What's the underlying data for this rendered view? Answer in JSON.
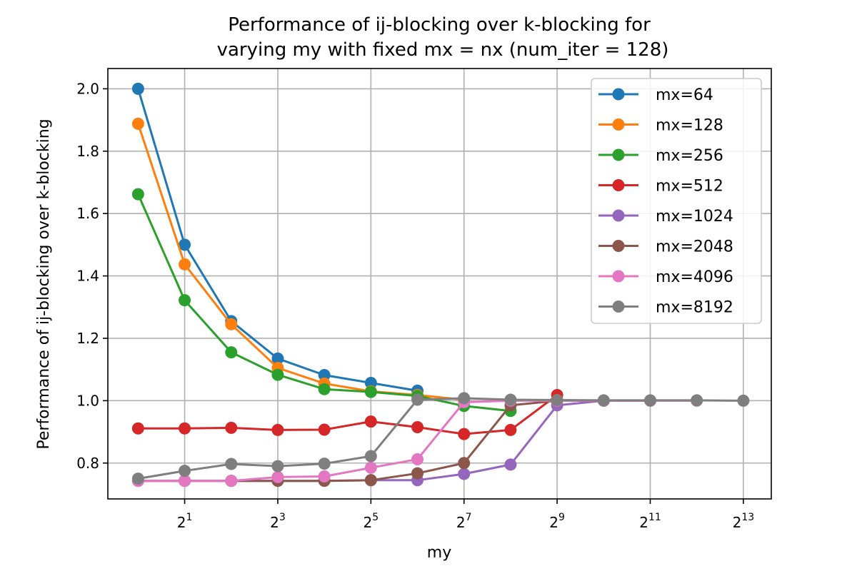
{
  "chart_data": {
    "type": "line",
    "title_lines": [
      "Performance of ij-blocking over k-blocking for",
      "varying my with fixed mx = nx (num_iter = 128)"
    ],
    "xlabel": "my",
    "ylabel": "Performance of ij-blocking over k-blocking",
    "x_scale": "log2",
    "xlim_exp": [
      -0.65,
      13.6
    ],
    "ylim": [
      0.685,
      2.065
    ],
    "x_ticks": [
      {
        "base": "2",
        "exp": "1",
        "value": 1
      },
      {
        "base": "2",
        "exp": "3",
        "value": 3
      },
      {
        "base": "2",
        "exp": "5",
        "value": 5
      },
      {
        "base": "2",
        "exp": "7",
        "value": 7
      },
      {
        "base": "2",
        "exp": "9",
        "value": 9
      },
      {
        "base": "2",
        "exp": "11",
        "value": 11
      },
      {
        "base": "2",
        "exp": "13",
        "value": 13
      }
    ],
    "y_ticks": [
      "0.8",
      "1.0",
      "1.2",
      "1.4",
      "1.6",
      "1.8",
      "2.0"
    ],
    "grid": true,
    "legend_position": "top-right",
    "series": [
      {
        "name": "mx=64",
        "color": "#1f77b4",
        "x_exp": [
          0,
          1,
          2,
          3,
          4,
          5,
          6
        ],
        "y": [
          2.0,
          1.5,
          1.255,
          1.135,
          1.082,
          1.057,
          1.032
        ]
      },
      {
        "name": "mx=128",
        "color": "#ff7f0e",
        "x_exp": [
          0,
          1,
          2,
          3,
          4,
          5,
          6,
          7
        ],
        "y": [
          1.888,
          1.437,
          1.245,
          1.105,
          1.055,
          1.03,
          1.018,
          1.003
        ]
      },
      {
        "name": "mx=256",
        "color": "#2ca02c",
        "x_exp": [
          0,
          1,
          2,
          3,
          4,
          5,
          6,
          7,
          8
        ],
        "y": [
          1.662,
          1.322,
          1.155,
          1.083,
          1.037,
          1.028,
          1.015,
          0.983,
          0.967
        ]
      },
      {
        "name": "mx=512",
        "color": "#d62728",
        "x_exp": [
          0,
          1,
          2,
          3,
          4,
          5,
          6,
          7,
          8,
          9
        ],
        "y": [
          0.911,
          0.911,
          0.913,
          0.906,
          0.907,
          0.933,
          0.915,
          0.893,
          0.906,
          1.018
        ]
      },
      {
        "name": "mx=1024",
        "color": "#9467bd",
        "x_exp": [
          0,
          1,
          2,
          3,
          4,
          5,
          6,
          7,
          8,
          9,
          10
        ],
        "y": [
          0.743,
          0.743,
          0.743,
          0.743,
          0.743,
          0.745,
          0.745,
          0.765,
          0.795,
          0.985,
          1.0
        ]
      },
      {
        "name": "mx=2048",
        "color": "#8c564b",
        "x_exp": [
          0,
          1,
          2,
          3,
          4,
          5,
          6,
          7,
          8,
          9,
          10,
          11
        ],
        "y": [
          0.743,
          0.743,
          0.743,
          0.743,
          0.743,
          0.745,
          0.767,
          0.8,
          0.985,
          1.0,
          1.0,
          1.0
        ]
      },
      {
        "name": "mx=4096",
        "color": "#e377c2",
        "x_exp": [
          0,
          1,
          2,
          3,
          4,
          5,
          6,
          7,
          8,
          9,
          10,
          11,
          12
        ],
        "y": [
          0.743,
          0.743,
          0.743,
          0.755,
          0.757,
          0.785,
          0.812,
          0.995,
          1.0,
          1.0,
          1.0,
          1.0,
          1.0
        ]
      },
      {
        "name": "mx=8192",
        "color": "#7f7f7f",
        "x_exp": [
          0,
          1,
          2,
          3,
          4,
          5,
          6,
          7,
          8,
          9,
          10,
          11,
          12,
          13
        ],
        "y": [
          0.75,
          0.775,
          0.797,
          0.79,
          0.798,
          0.822,
          1.003,
          1.008,
          1.003,
          1.002,
          1.001,
          1.001,
          1.001,
          1.0
        ]
      }
    ]
  }
}
